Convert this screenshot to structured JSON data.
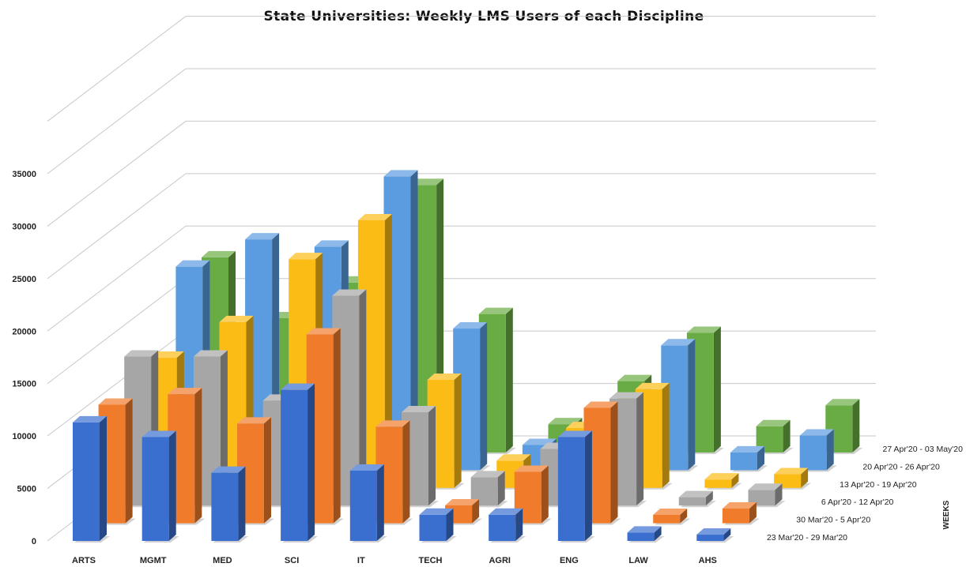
{
  "chart_data": {
    "type": "bar",
    "title": "State Universities: Weekly LMS Users of each Discipline",
    "categories": [
      "ARTS",
      "MGMT",
      "MED",
      "SCI",
      "IT",
      "TECH",
      "AGRI",
      "ENG",
      "LAW",
      "AHS"
    ],
    "depth_axis_label": "WEEKS",
    "ylim": [
      0,
      35000
    ],
    "yticks": [
      0,
      5000,
      10000,
      15000,
      20000,
      25000,
      30000,
      35000
    ],
    "grid": true,
    "legend": "none",
    "series": [
      {
        "name": "23 Mar'20 - 29 Mar'20",
        "color": "#3a6fd0",
        "values": [
          11300,
          9900,
          6500,
          14400,
          6700,
          2500,
          2500,
          9900,
          800,
          600
        ]
      },
      {
        "name": "30 Mar'20 - 5 Apr'20",
        "color": "#f07b2a",
        "values": [
          11300,
          12300,
          9500,
          18000,
          9200,
          1700,
          4900,
          11000,
          800,
          1400
        ]
      },
      {
        "name": "6 Apr'20 - 12 Apr'20",
        "color": "#a6a6a6",
        "values": [
          14200,
          14200,
          10000,
          20000,
          8900,
          2700,
          5400,
          10200,
          800,
          1500
        ]
      },
      {
        "name": "13 Apr'20 - 19 Apr'20",
        "color": "#fcbc16",
        "values": [
          12400,
          15800,
          21800,
          25500,
          10300,
          2600,
          5700,
          9400,
          800,
          1300
        ]
      },
      {
        "name": "20 Apr'20 - 26 Apr'20",
        "color": "#5b9bdf",
        "values": [
          19400,
          22000,
          21300,
          28000,
          13500,
          2400,
          4800,
          11900,
          1700,
          3300
        ]
      },
      {
        "name": "27 Apr'20 - 03 May'20",
        "color": "#6aac44",
        "values": [
          18600,
          12800,
          16200,
          25500,
          13200,
          2700,
          6800,
          11400,
          2500,
          4500
        ]
      }
    ]
  }
}
